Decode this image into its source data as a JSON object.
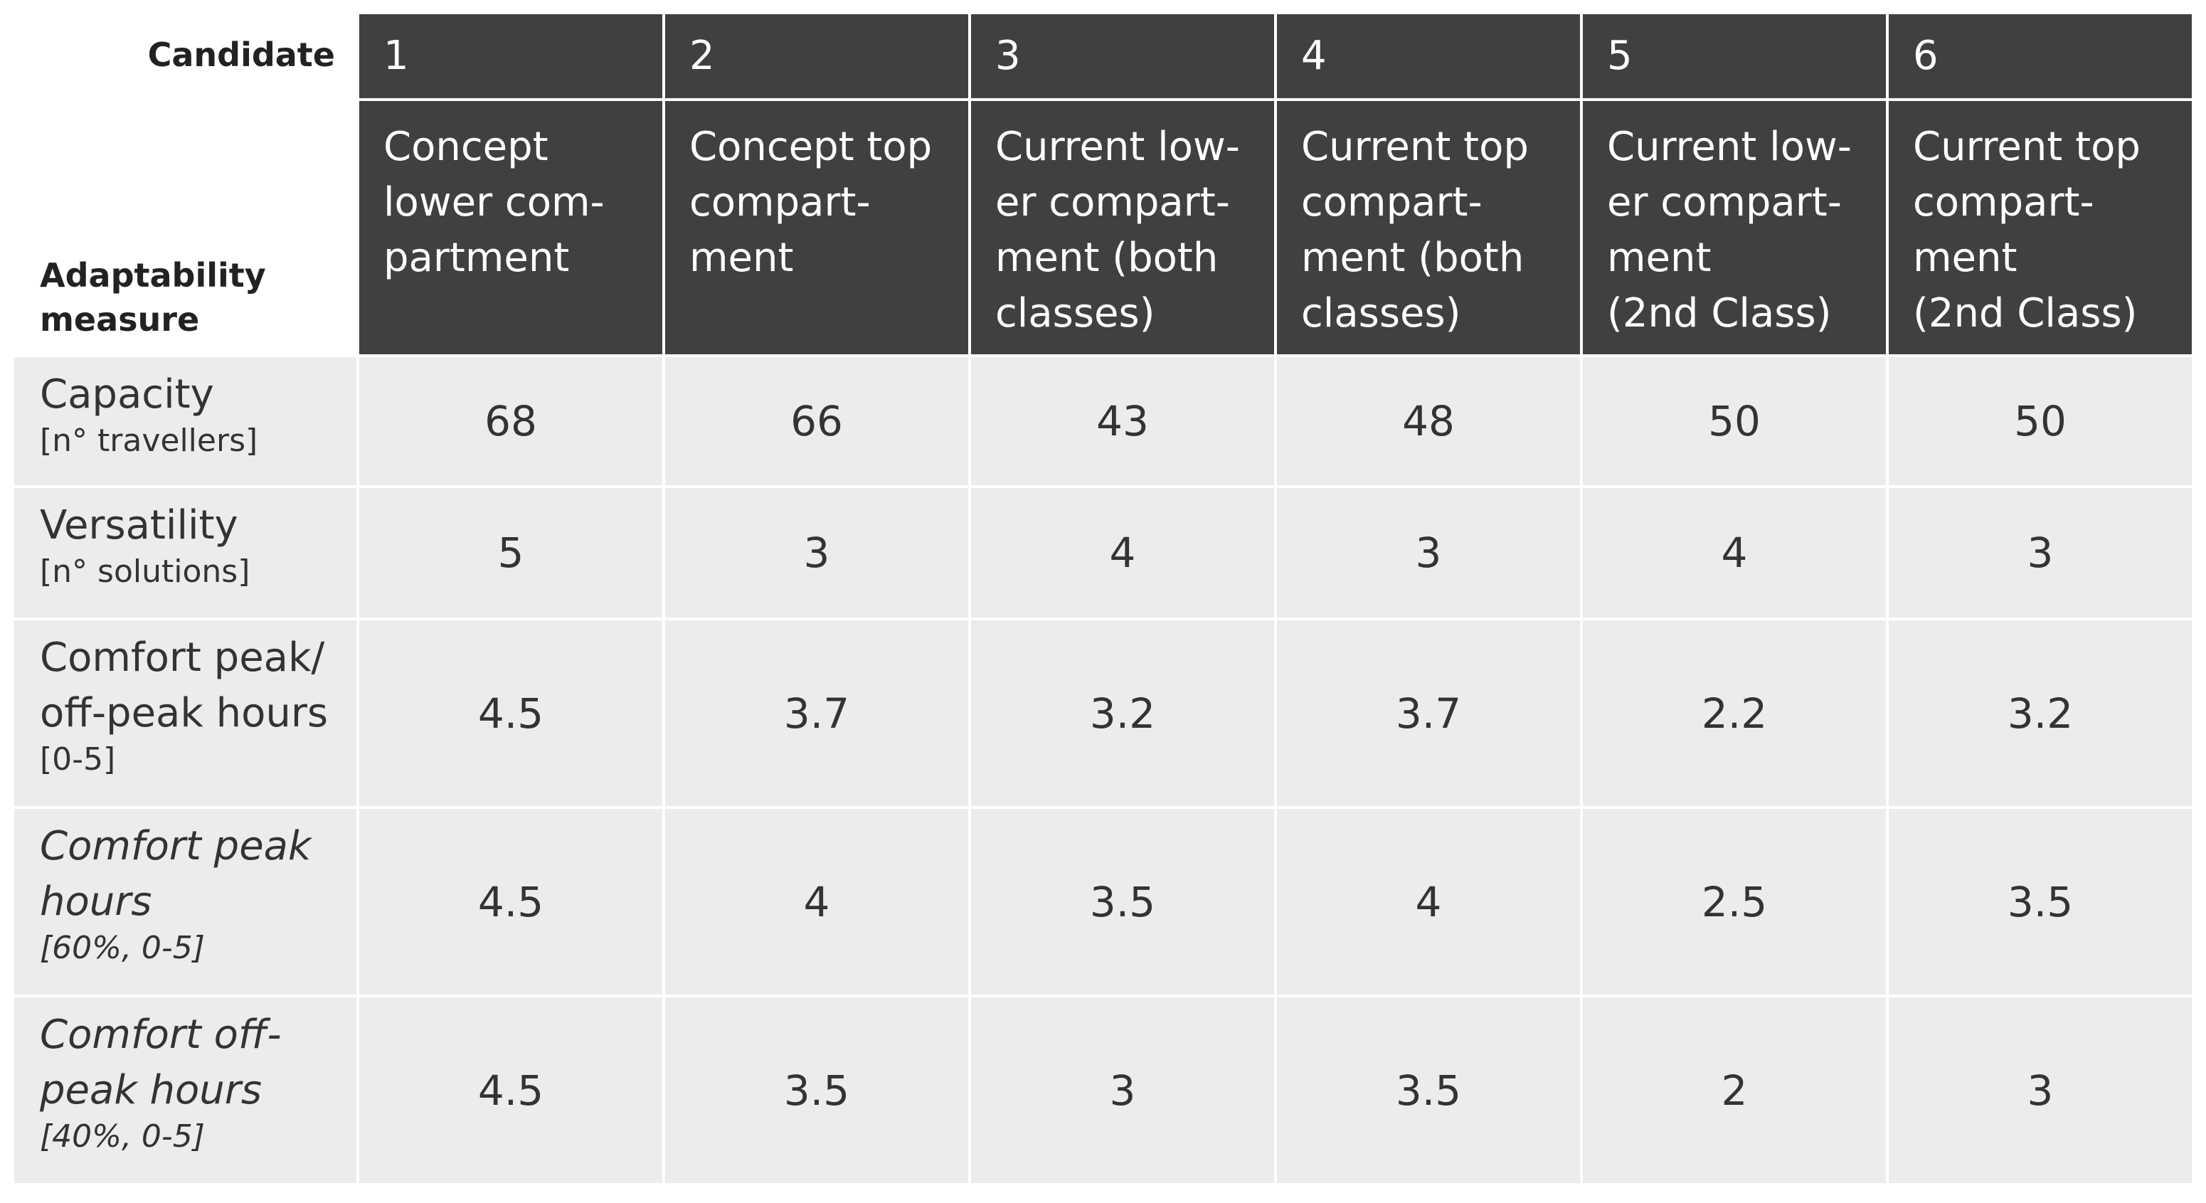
{
  "table": {
    "corner_top": "Candidate",
    "corner_bottom": [
      "Adaptability",
      "measure"
    ],
    "candidates": [
      "1",
      "2",
      "3",
      "4",
      "5",
      "6"
    ],
    "descriptions": [
      [
        "Concept",
        "lower com-",
        "partment"
      ],
      [
        "Concept top",
        "compart-",
        "ment"
      ],
      [
        "Current low-",
        "er compart-",
        "ment (both",
        "classes)"
      ],
      [
        "Current top",
        "compart-",
        "ment (both",
        "classes)"
      ],
      [
        "Current low-",
        "er compart-",
        "ment",
        "(2nd Class)"
      ],
      [
        "Current top",
        "compart-",
        "ment",
        "(2nd Class)"
      ]
    ],
    "rows": [
      {
        "label": [
          "Capacity"
        ],
        "unit": "[n° travellers]",
        "style": "normal",
        "values": [
          68,
          66,
          43,
          48,
          50,
          50
        ]
      },
      {
        "label": [
          "Versatility"
        ],
        "unit": "[n° solutions]",
        "style": "normal",
        "values": [
          5,
          3,
          4,
          3,
          4,
          3
        ]
      },
      {
        "label": [
          "Comfort peak/",
          "off-peak hours"
        ],
        "unit": "[0-5]",
        "style": "normal",
        "values": [
          4.5,
          3.7,
          3.2,
          3.7,
          2.2,
          3.2
        ]
      },
      {
        "label": [
          "Comfort peak",
          "hours"
        ],
        "unit": "[60%, 0-5]",
        "style": "italic",
        "values": [
          4.5,
          4,
          3.5,
          4,
          2.5,
          3.5
        ]
      },
      {
        "label": [
          "Comfort off-",
          "peak hours"
        ],
        "unit": "[40%, 0-5]",
        "style": "italic",
        "values": [
          4.5,
          3.5,
          3,
          3.5,
          2,
          3
        ]
      }
    ]
  }
}
